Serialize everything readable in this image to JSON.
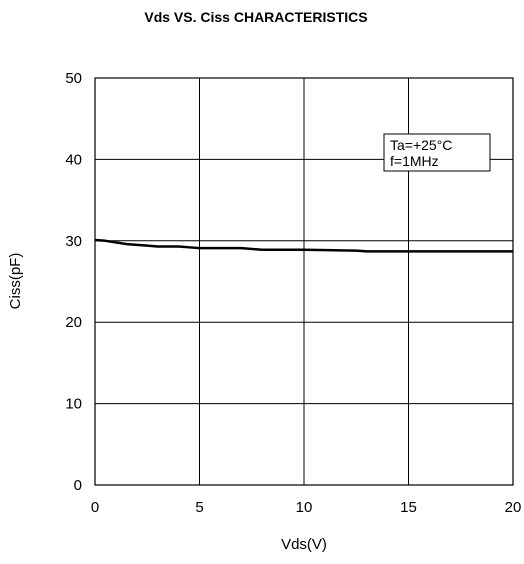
{
  "chart_data": {
    "type": "line",
    "title": "Vds  VS. Ciss CHARACTERISTICS",
    "xlabel": "Vds(V)",
    "ylabel": "Ciss(pF)",
    "xlim": [
      0,
      20
    ],
    "ylim": [
      0,
      50
    ],
    "x_ticks": [
      0,
      5,
      10,
      15,
      20
    ],
    "y_ticks": [
      0,
      10,
      20,
      30,
      40,
      50
    ],
    "x_tick_labels": [
      "0",
      "5",
      "10",
      "15",
      "20"
    ],
    "y_tick_labels": [
      "0",
      "10",
      "20",
      "30",
      "40",
      "50"
    ],
    "grid": true,
    "annotation_lines": [
      "Ta=+25°C",
      "f=1MHz"
    ],
    "annotation_position": "top-right",
    "line_color": "#000000",
    "series": [
      {
        "x": [
          0,
          0.5,
          1.0,
          1.5,
          2.0,
          2.5,
          3.0,
          4.0,
          4.5,
          5.0,
          6.0,
          7.0,
          7.5,
          8.0,
          10.0,
          12.5,
          13.0,
          15.0,
          20.0
        ],
        "y": [
          30.1,
          30.0,
          29.8,
          29.6,
          29.5,
          29.4,
          29.3,
          29.3,
          29.2,
          29.1,
          29.1,
          29.1,
          29.0,
          28.9,
          28.9,
          28.8,
          28.7,
          28.7,
          28.7
        ]
      }
    ]
  }
}
